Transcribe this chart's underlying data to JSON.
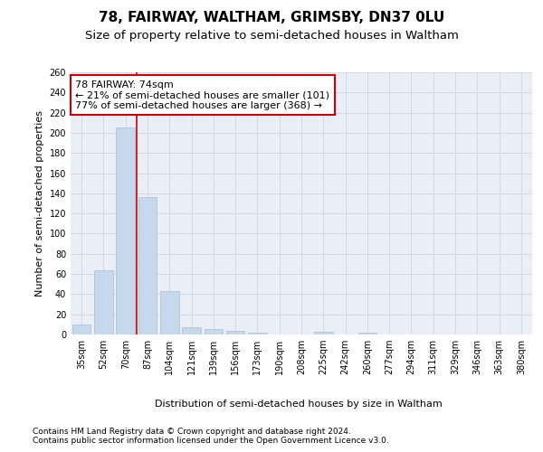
{
  "title": "78, FAIRWAY, WALTHAM, GRIMSBY, DN37 0LU",
  "subtitle": "Size of property relative to semi-detached houses in Waltham",
  "xlabel": "Distribution of semi-detached houses by size in Waltham",
  "ylabel": "Number of semi-detached properties",
  "categories": [
    "35sqm",
    "52sqm",
    "70sqm",
    "87sqm",
    "104sqm",
    "121sqm",
    "139sqm",
    "156sqm",
    "173sqm",
    "190sqm",
    "208sqm",
    "225sqm",
    "242sqm",
    "260sqm",
    "277sqm",
    "294sqm",
    "311sqm",
    "329sqm",
    "346sqm",
    "363sqm",
    "380sqm"
  ],
  "values": [
    10,
    64,
    205,
    136,
    43,
    7,
    5,
    4,
    2,
    0,
    0,
    3,
    0,
    2,
    0,
    0,
    0,
    0,
    0,
    0,
    0
  ],
  "bar_color": "#c5d8ec",
  "bar_edge_color": "#a8bfd4",
  "property_size": "74sqm",
  "pct_smaller": 21,
  "n_smaller": 101,
  "pct_larger": 77,
  "n_larger": 368,
  "annotation_text_line1": "78 FAIRWAY: 74sqm",
  "annotation_text_line2": "← 21% of semi-detached houses are smaller (101)",
  "annotation_text_line3": "77% of semi-detached houses are larger (368) →",
  "ylim": [
    0,
    260
  ],
  "yticks": [
    0,
    20,
    40,
    60,
    80,
    100,
    120,
    140,
    160,
    180,
    200,
    220,
    240,
    260
  ],
  "footnote1": "Contains HM Land Registry data © Crown copyright and database right 2024.",
  "footnote2": "Contains public sector information licensed under the Open Government Licence v3.0.",
  "background_color": "#ffffff",
  "plot_bg_color": "#eaeff7",
  "grid_color": "#cdd5e0",
  "annotation_box_color": "#ffffff",
  "annotation_box_edge": "#cc0000",
  "red_line_color": "#cc0000",
  "title_fontsize": 11,
  "subtitle_fontsize": 9.5,
  "axis_label_fontsize": 8,
  "tick_fontsize": 7,
  "annotation_fontsize": 8,
  "footnote_fontsize": 6.5
}
